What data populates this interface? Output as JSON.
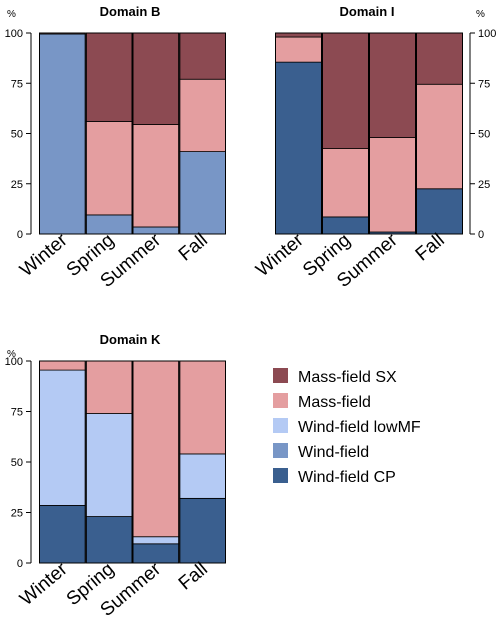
{
  "colors": {
    "Mass-field SX": "#8c4a52",
    "Mass-field": "#e49ea0",
    "Wind-field lowMF": "#b4caf4",
    "Wind-field": "#7896c6",
    "Wind-field CP": "#3a5f8f"
  },
  "legend": {
    "items": [
      "Mass-field SX",
      "Mass-field",
      "Wind-field lowMF",
      "Wind-field",
      "Wind-field CP"
    ]
  },
  "chart_data": [
    {
      "type": "bar",
      "stacked": true,
      "title": "Domain B",
      "unit": "%",
      "categories": [
        "Winter",
        "Spring",
        "Summer",
        "Fall"
      ],
      "ylim": [
        0,
        100
      ],
      "yticks": [
        0,
        25,
        50,
        75,
        100
      ],
      "y_axis_side": "left",
      "series": [
        {
          "name": "Wind-field CP",
          "values": [
            0,
            0,
            0,
            0
          ]
        },
        {
          "name": "Wind-field",
          "values": [
            99.5,
            9.5,
            3.5,
            41
          ]
        },
        {
          "name": "Wind-field lowMF",
          "values": [
            0,
            0,
            0,
            0
          ]
        },
        {
          "name": "Mass-field",
          "values": [
            0.5,
            46.5,
            51,
            36
          ]
        },
        {
          "name": "Mass-field SX",
          "values": [
            0,
            44,
            45.5,
            23
          ]
        }
      ]
    },
    {
      "type": "bar",
      "stacked": true,
      "title": "Domain I",
      "unit": "%",
      "categories": [
        "Winter",
        "Spring",
        "Summer",
        "Fall"
      ],
      "ylim": [
        0,
        100
      ],
      "yticks": [
        0,
        25,
        50,
        75,
        100
      ],
      "y_axis_side": "right",
      "series": [
        {
          "name": "Wind-field CP",
          "values": [
            85.5,
            8.5,
            1,
            22.5
          ]
        },
        {
          "name": "Wind-field",
          "values": [
            0,
            0,
            0,
            0
          ]
        },
        {
          "name": "Wind-field lowMF",
          "values": [
            0,
            0,
            0,
            0
          ]
        },
        {
          "name": "Mass-field",
          "values": [
            12.5,
            34,
            47,
            52
          ]
        },
        {
          "name": "Mass-field SX",
          "values": [
            2,
            57.5,
            52,
            25.5
          ]
        }
      ]
    },
    {
      "type": "bar",
      "stacked": true,
      "title": "Domain K",
      "unit": "%",
      "categories": [
        "Winter",
        "Spring",
        "Summer",
        "Fall"
      ],
      "ylim": [
        0,
        100
      ],
      "yticks": [
        0,
        25,
        50,
        75,
        100
      ],
      "y_axis_side": "left",
      "series": [
        {
          "name": "Wind-field CP",
          "values": [
            28.5,
            23,
            9.5,
            32
          ]
        },
        {
          "name": "Wind-field",
          "values": [
            0,
            0,
            0,
            0
          ]
        },
        {
          "name": "Wind-field lowMF",
          "values": [
            67,
            51,
            3.5,
            22
          ]
        },
        {
          "name": "Mass-field",
          "values": [
            4.5,
            26,
            87,
            46
          ]
        },
        {
          "name": "Mass-field SX",
          "values": [
            0,
            0,
            0,
            0
          ]
        }
      ]
    }
  ]
}
